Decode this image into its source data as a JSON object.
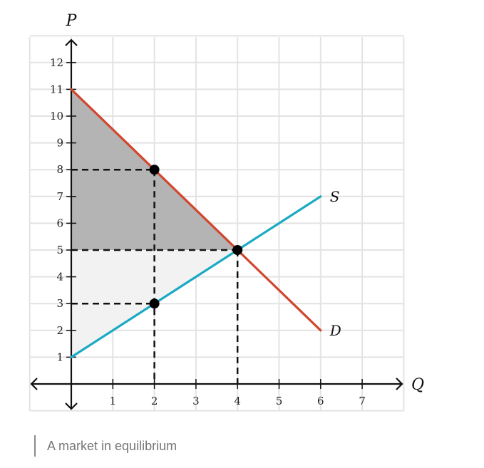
{
  "chart_data": {
    "type": "line",
    "title": "",
    "xlabel": "Q",
    "ylabel": "P",
    "xlim": [
      -1,
      8
    ],
    "ylim": [
      -1,
      13
    ],
    "x_ticks": [
      1,
      2,
      3,
      4,
      5,
      6,
      7
    ],
    "y_ticks": [
      1,
      2,
      3,
      4,
      5,
      6,
      7,
      8,
      9,
      10,
      11,
      12
    ],
    "grid": true,
    "series": [
      {
        "name": "S",
        "color": "#1aa9c3",
        "points": [
          [
            0,
            1
          ],
          [
            6,
            7
          ]
        ]
      },
      {
        "name": "D",
        "color": "#d1472e",
        "points": [
          [
            0,
            11
          ],
          [
            6,
            2
          ]
        ]
      }
    ],
    "shaded_regions": [
      {
        "color": "#b4b4b4",
        "points": [
          [
            0,
            11
          ],
          [
            0,
            5
          ],
          [
            4,
            5
          ]
        ]
      },
      {
        "color": "#f2f2f2",
        "points": [
          [
            0,
            5
          ],
          [
            0,
            1
          ],
          [
            4,
            5
          ]
        ]
      }
    ],
    "points": [
      [
        2,
        8
      ],
      [
        2,
        3
      ],
      [
        4,
        5
      ]
    ],
    "guides": [
      [
        [
          0,
          8
        ],
        [
          2,
          8
        ]
      ],
      [
        [
          2,
          8
        ],
        [
          2,
          0
        ]
      ],
      [
        [
          0,
          5
        ],
        [
          4,
          5
        ]
      ],
      [
        [
          4,
          5
        ],
        [
          4,
          0
        ]
      ],
      [
        [
          0,
          3
        ],
        [
          2,
          3
        ]
      ]
    ]
  },
  "caption": "A market in equilibrium"
}
